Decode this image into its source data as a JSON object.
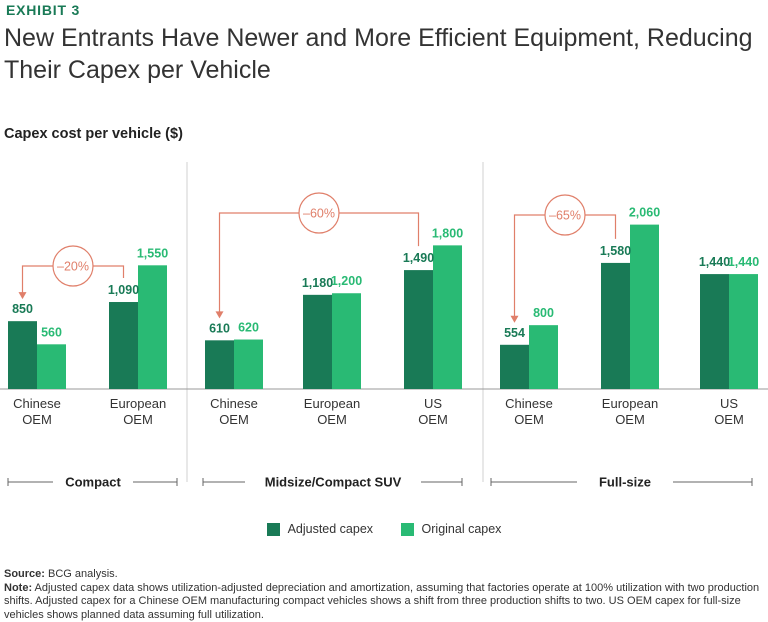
{
  "header": {
    "exhibit": "EXHIBIT 3",
    "title": "New Entrants Have Newer and More Efficient Equipment, Reducing Their Capex per Vehicle",
    "subtitle": "Capex cost per vehicle ($)"
  },
  "colors": {
    "adjusted": "#197a56",
    "original": "#29ba74",
    "arrow": "#e07f6a",
    "text_adjusted": "#197a56",
    "text_original": "#29ba74"
  },
  "chart_data": {
    "type": "bar",
    "title": "Capex cost per vehicle ($)",
    "xlabel": "",
    "ylabel": "Capex cost per vehicle ($)",
    "ylim": [
      0,
      2100
    ],
    "series_names": [
      "Adjusted capex",
      "Original capex"
    ],
    "groups": [
      {
        "name": "Compact",
        "categories": [
          {
            "label": [
              "Chinese",
              "OEM"
            ],
            "adjusted": 850,
            "original": 560,
            "adjusted_label": "850",
            "original_label": "560"
          },
          {
            "label": [
              "European",
              "OEM"
            ],
            "adjusted": 1090,
            "original": 1550,
            "adjusted_label": "1,090",
            "original_label": "1,550"
          }
        ],
        "comparison": {
          "text": "–20%",
          "from": 1,
          "to": 0
        }
      },
      {
        "name": "Midsize/Compact SUV",
        "categories": [
          {
            "label": [
              "Chinese",
              "OEM"
            ],
            "adjusted": 610,
            "original": 620,
            "adjusted_label": "610",
            "original_label": "620"
          },
          {
            "label": [
              "European",
              "OEM"
            ],
            "adjusted": 1180,
            "original": 1200,
            "adjusted_label": "1,180",
            "original_label": "1,200"
          },
          {
            "label": [
              "US",
              "OEM"
            ],
            "adjusted": 1490,
            "original": 1800,
            "adjusted_label": "1,490",
            "original_label": "1,800"
          }
        ],
        "comparison": {
          "text": "–60%",
          "from": 2,
          "to": 0
        }
      },
      {
        "name": "Full-size",
        "categories": [
          {
            "label": [
              "Chinese",
              "OEM"
            ],
            "adjusted": 554,
            "original": 800,
            "adjusted_label": "554",
            "original_label": "800"
          },
          {
            "label": [
              "European",
              "OEM"
            ],
            "adjusted": 1580,
            "original": 2060,
            "adjusted_label": "1,580",
            "original_label": "2,060"
          },
          {
            "label": [
              "US",
              "OEM"
            ],
            "adjusted": 1440,
            "original": 1440,
            "adjusted_label": "1,440",
            "original_label": "1,440"
          }
        ],
        "comparison": {
          "text": "–65%",
          "from": 1,
          "to": 0
        }
      }
    ]
  },
  "legend": {
    "adjusted": "Adjusted capex",
    "original": "Original capex"
  },
  "footer": {
    "source_label": "Source:",
    "source_text": " BCG analysis.",
    "note_label": "Note:",
    "note_text": " Adjusted capex data shows utilization-adjusted depreciation and amortization, assuming that factories operate at 100% utilization with two production shifts. Adjusted capex for a Chinese OEM manufacturing compact vehicles shows a shift from three production shifts to two. US OEM capex for full-size vehicles shows planned data assuming full utilization."
  }
}
